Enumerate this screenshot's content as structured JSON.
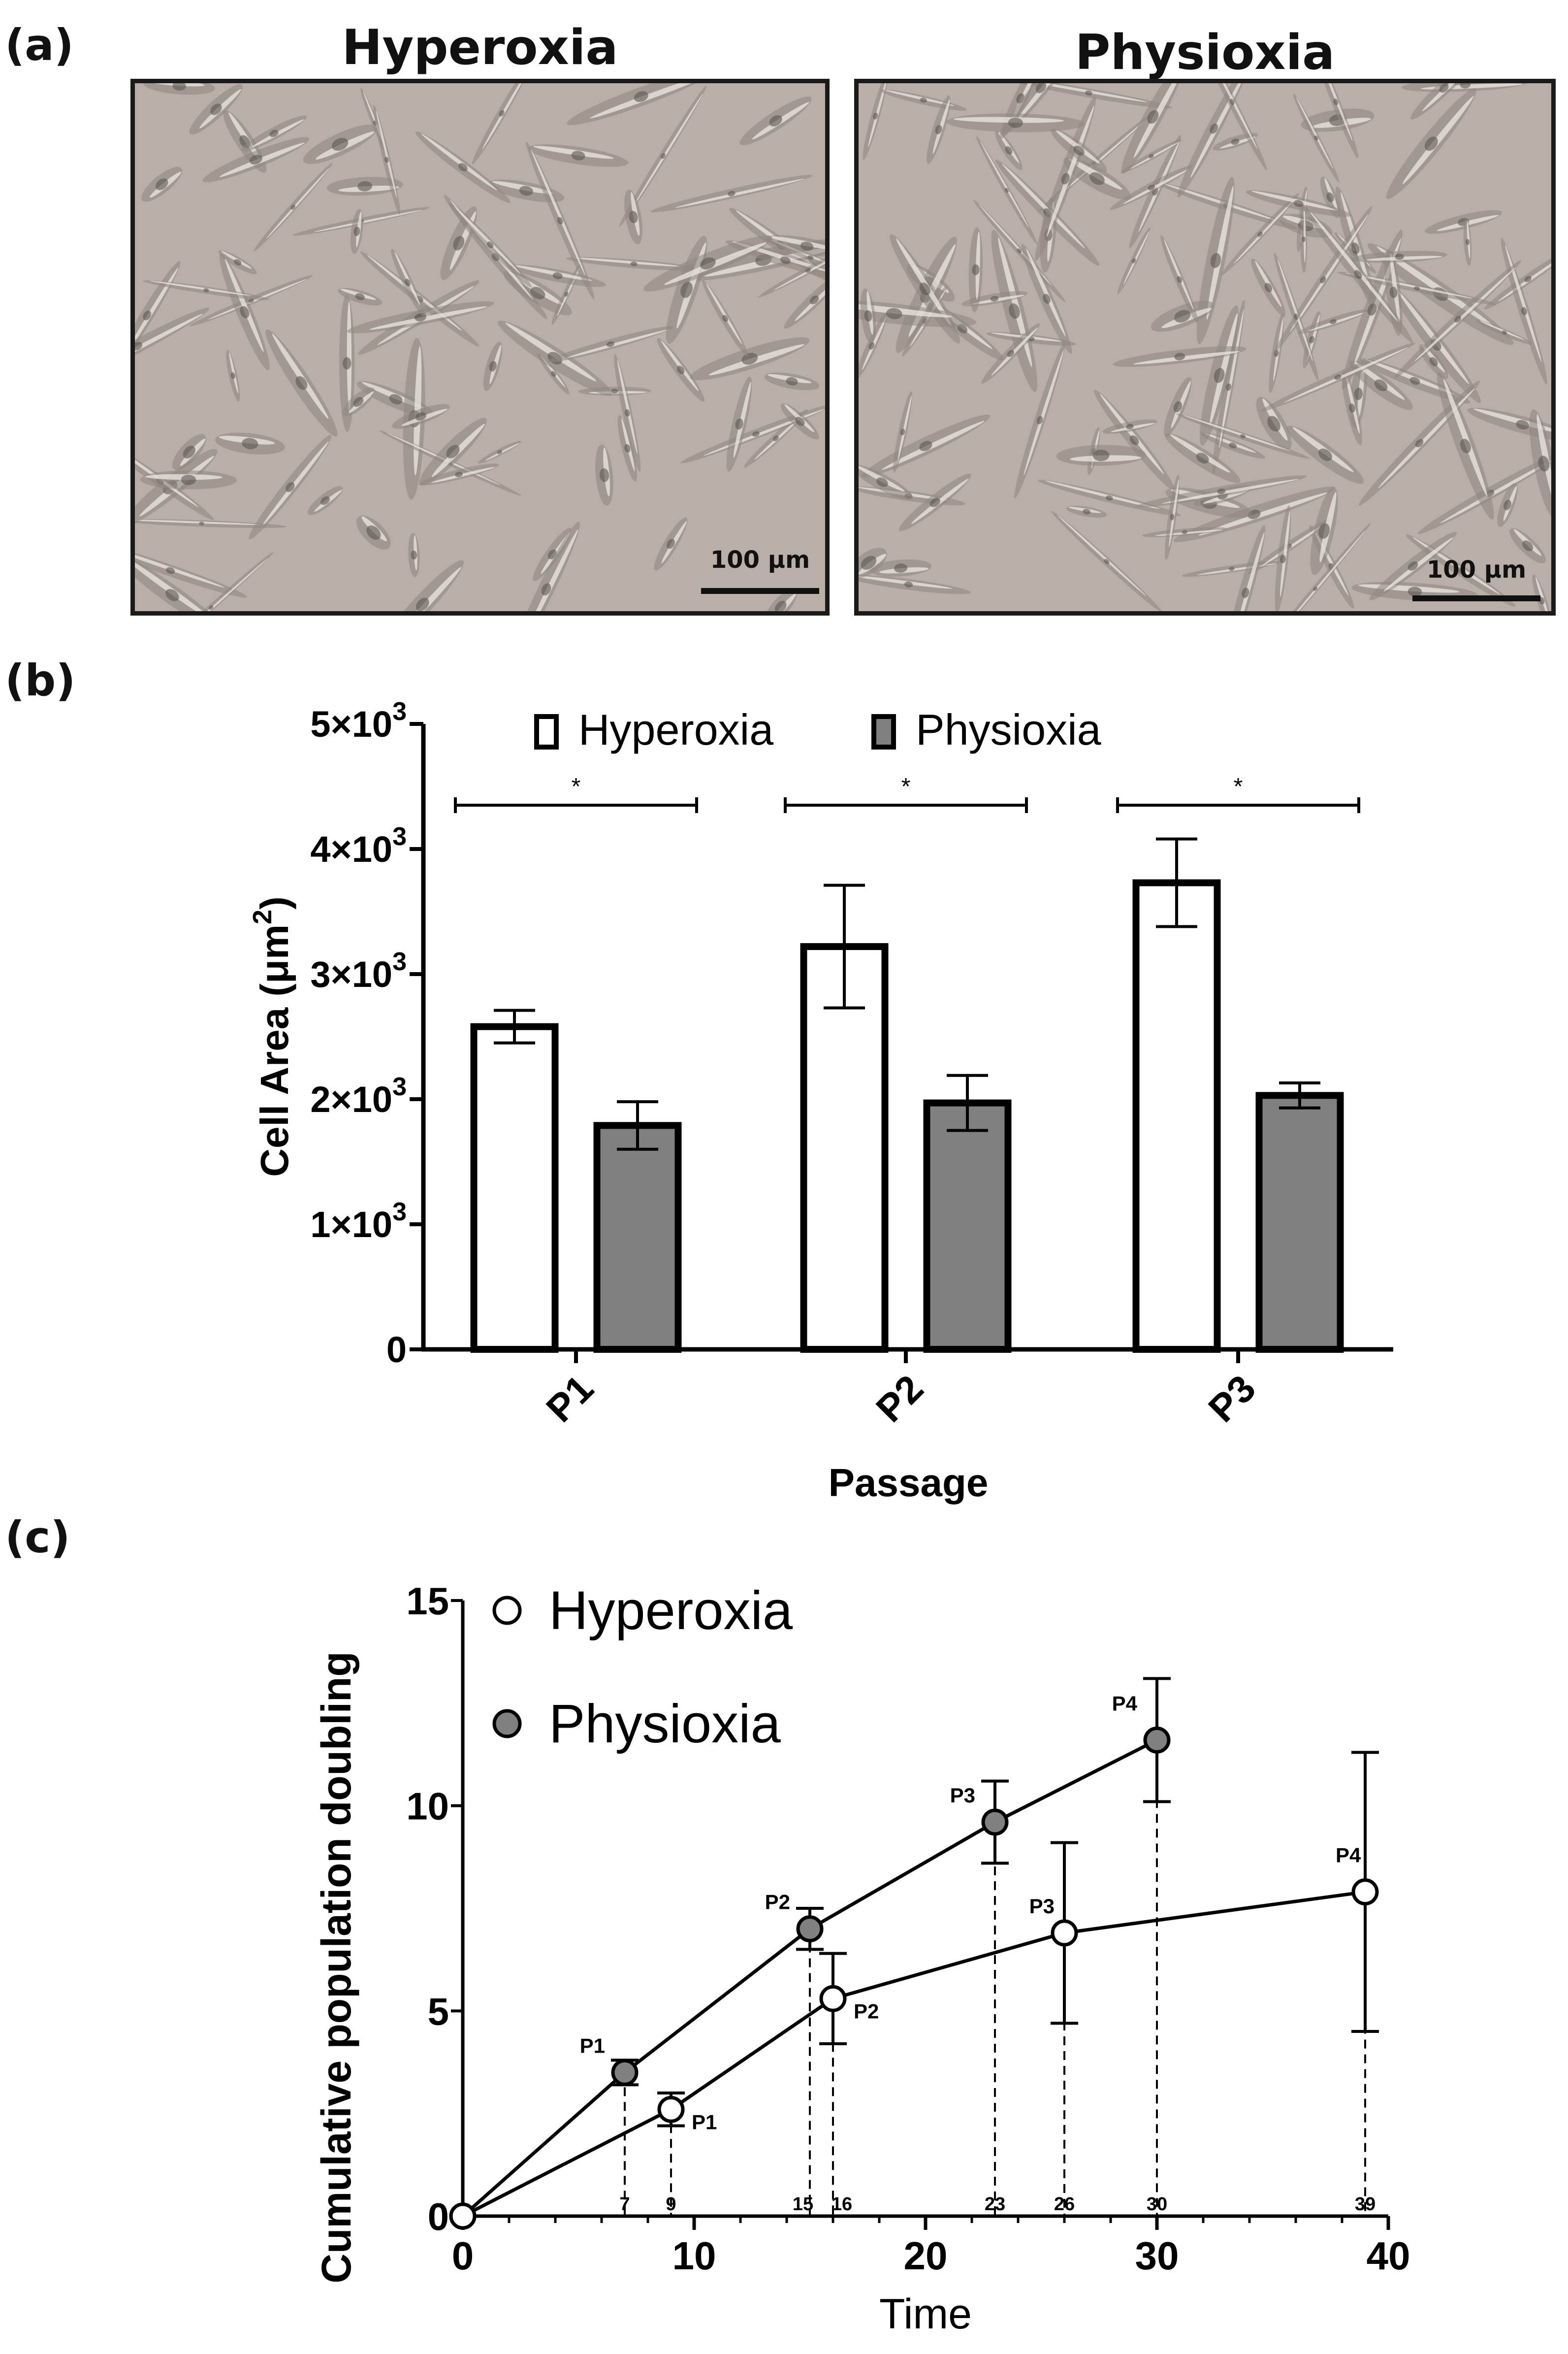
{
  "panel_labels": {
    "a": "(a)",
    "b": "(b)",
    "c": "(c)"
  },
  "images": [
    {
      "title": "Hyperoxia",
      "scale_label": "100 µm"
    },
    {
      "title": "Physioxia",
      "scale_label": "100 µm"
    }
  ],
  "colors": {
    "hyperoxia_fill": "#ffffff",
    "physioxia_fill": "#808080",
    "stroke": "#000000",
    "photo_bg": "#b9aea8"
  },
  "chart_data": [
    {
      "type": "bar",
      "xlabel": "Passage",
      "ylabel": "Cell Area (μm²)",
      "categories": [
        "P1",
        "P2",
        "P3"
      ],
      "ylim": [
        0,
        5000
      ],
      "yticks": [
        {
          "value": 0,
          "label": "0"
        },
        {
          "value": 1000,
          "label": "1×10³"
        },
        {
          "value": 2000,
          "label": "2×10³"
        },
        {
          "value": 3000,
          "label": "3×10³"
        },
        {
          "value": 4000,
          "label": "4×10³"
        },
        {
          "value": 5000,
          "label": "5×10³"
        }
      ],
      "series": [
        {
          "name": "Hyperoxia",
          "values": [
            2580,
            3220,
            3730
          ],
          "errors": [
            130,
            490,
            350
          ]
        },
        {
          "name": "Physioxia",
          "values": [
            1790,
            1970,
            2030
          ],
          "errors": [
            190,
            220,
            100
          ]
        }
      ],
      "significance": [
        "*",
        "*",
        "*"
      ],
      "legend": "top"
    },
    {
      "type": "line",
      "xlabel": "Time",
      "ylabel": "Cumulative population doubling",
      "xlim": [
        0,
        40
      ],
      "ylim": [
        0,
        15
      ],
      "xticks": [
        0,
        10,
        20,
        30,
        40
      ],
      "yticks": [
        0,
        5,
        10,
        15
      ],
      "minor_xtick_labels": [
        "7",
        "9",
        "15",
        "16",
        "23",
        "26",
        "30",
        "39"
      ],
      "series": [
        {
          "name": "Hyperoxia",
          "marker": "open-circle",
          "x": [
            0,
            9,
            16,
            26,
            39
          ],
          "y": [
            0,
            2.6,
            5.3,
            6.9,
            7.9
          ],
          "errors": [
            0,
            0.4,
            1.1,
            2.2,
            3.4
          ],
          "point_labels": [
            "",
            "P1",
            "P2",
            "P3",
            "P4"
          ]
        },
        {
          "name": "Physioxia",
          "marker": "filled-circle",
          "x": [
            0,
            7,
            15,
            23,
            30
          ],
          "y": [
            0,
            3.5,
            7.0,
            9.6,
            11.6
          ],
          "errors": [
            0,
            0.3,
            0.5,
            1.0,
            1.5
          ],
          "point_labels": [
            "",
            "P1",
            "P2",
            "P3",
            "P4"
          ]
        }
      ],
      "legend": "top-left"
    }
  ]
}
